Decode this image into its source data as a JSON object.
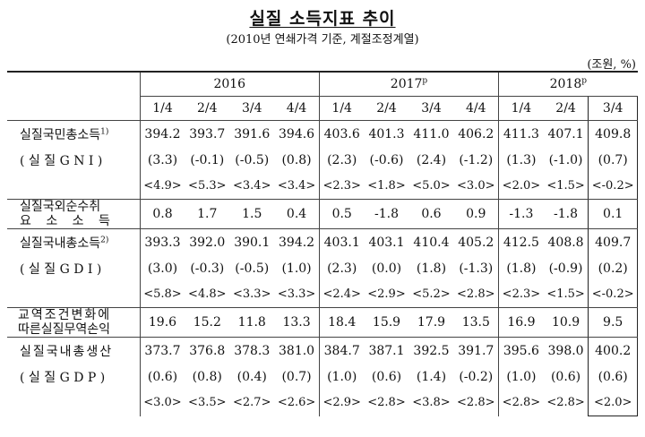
{
  "title": "실질 소득지표 추이",
  "subtitle": "(2010년 연쇄가격 기준, 계절조정계열)",
  "unit": "(조원, %)",
  "years": [
    {
      "label": "2016",
      "sup": ""
    },
    {
      "label": "2017",
      "sup": "p"
    },
    {
      "label": "2018",
      "sup": "p"
    }
  ],
  "quarters": [
    "1/4",
    "2/4",
    "3/4",
    "4/4",
    "1/4",
    "2/4",
    "3/4",
    "4/4",
    "1/4",
    "2/4",
    "3/4"
  ],
  "rows": {
    "gni": {
      "label": "실질국민총소득",
      "note": "1)",
      "values": [
        "394.2",
        "393.7",
        "391.6",
        "394.6",
        "403.6",
        "401.3",
        "411.0",
        "406.2",
        "411.3",
        "407.1",
        "409.8"
      ]
    },
    "gni_qoq": {
      "label": "( 실 질 G N I )",
      "values": [
        "(3.3)",
        "(-0.1)",
        "(-0.5)",
        "(0.8)",
        "(2.3)",
        "(-0.6)",
        "(2.4)",
        "(-1.2)",
        "(1.3)",
        "(-1.0)",
        "(0.7)"
      ]
    },
    "gni_yoy": {
      "values": [
        "<4.9>",
        "<5.3>",
        "<3.4>",
        "<3.4>",
        "<2.3>",
        "<1.8>",
        "<5.0>",
        "<3.0>",
        "<2.0>",
        "<1.5>",
        "<-0.2>"
      ]
    },
    "net_income": {
      "label_line1": "실질국외순수취",
      "label_line2": "요 소 소 득",
      "values": [
        "0.8",
        "1.7",
        "1.5",
        "0.4",
        "0.5",
        "-1.8",
        "0.6",
        "0.9",
        "-1.3",
        "-1.8",
        "0.1"
      ]
    },
    "gdi": {
      "label": "실질국내총소득",
      "note": "2)",
      "values": [
        "393.3",
        "392.0",
        "390.1",
        "394.2",
        "403.1",
        "403.1",
        "410.4",
        "405.2",
        "412.5",
        "408.8",
        "409.7"
      ]
    },
    "gdi_qoq": {
      "label": "( 실 질 G D I )",
      "values": [
        "(3.0)",
        "(-0.3)",
        "(-0.5)",
        "(1.0)",
        "(2.3)",
        "(0.0)",
        "(1.8)",
        "(-1.3)",
        "(1.8)",
        "(-0.9)",
        "(0.2)"
      ]
    },
    "gdi_yoy": {
      "values": [
        "<5.8>",
        "<4.8>",
        "<3.3>",
        "<3.3>",
        "<2.4>",
        "<2.9>",
        "<5.2>",
        "<2.8>",
        "<2.3>",
        "<1.5>",
        "<-0.2>"
      ]
    },
    "tot": {
      "label_line1": "교역조건변화에",
      "label_line2": "따른실질무역손익",
      "values": [
        "19.6",
        "15.2",
        "11.8",
        "13.3",
        "18.4",
        "15.9",
        "17.9",
        "13.5",
        "16.9",
        "10.9",
        "9.5"
      ]
    },
    "gdp": {
      "label": "실질국내총생산",
      "values": [
        "373.7",
        "376.8",
        "378.3",
        "381.0",
        "384.7",
        "387.1",
        "392.5",
        "391.7",
        "395.6",
        "398.0",
        "400.2"
      ]
    },
    "gdp_qoq": {
      "label": "( 실 질 G D P )",
      "values": [
        "(0.6)",
        "(0.8)",
        "(0.4)",
        "(0.7)",
        "(1.0)",
        "(0.6)",
        "(1.4)",
        "(-0.2)",
        "(1.0)",
        "(0.6)",
        "(0.6)"
      ]
    },
    "gdp_yoy": {
      "values": [
        "<3.0>",
        "<3.5>",
        "<2.7>",
        "<2.6>",
        "<2.9>",
        "<2.8>",
        "<3.8>",
        "<2.8>",
        "<2.8>",
        "<2.8>",
        "<2.0>"
      ]
    }
  }
}
